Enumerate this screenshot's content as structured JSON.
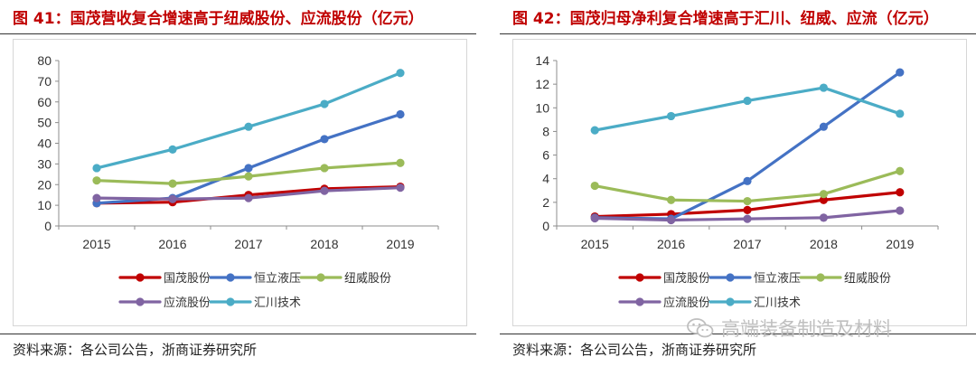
{
  "left": {
    "figure_title": "图 41：国茂营收复合增速高于纽威股份、应流股份（亿元）",
    "source": "资料来源：各公司公告，浙商证券研究所"
  },
  "right": {
    "figure_title": "图 42：国茂归母净利复合增速高于汇川、纽威、应流（亿元）",
    "source": "资料来源：各公司公告，浙商证券研究所"
  },
  "watermark": {
    "text": "高端装备制造及材料",
    "icon": "wechat-icon"
  },
  "chart_data": [
    {
      "type": "line",
      "title": "图 41：国茂营收复合增速高于纽威股份、应流股份（亿元）",
      "xlabel": "",
      "ylabel": "",
      "categories": [
        "2015",
        "2016",
        "2017",
        "2018",
        "2019"
      ],
      "ylim": [
        0,
        80
      ],
      "yticks": [
        0,
        10,
        20,
        30,
        40,
        50,
        60,
        70,
        80
      ],
      "grid": false,
      "legend": "bottom",
      "series": [
        {
          "name": "国茂股份",
          "color": "#c00000",
          "values": [
            11,
            11.5,
            15,
            18,
            19
          ]
        },
        {
          "name": "恒立液压",
          "color": "#4472c4",
          "values": [
            11,
            13.5,
            28,
            42,
            54
          ]
        },
        {
          "name": "纽威股份",
          "color": "#9bbb59",
          "values": [
            22,
            20.5,
            24,
            28,
            30.5
          ]
        },
        {
          "name": "应流股份",
          "color": "#8064a2",
          "values": [
            13.5,
            13,
            13.5,
            17,
            18.5
          ]
        },
        {
          "name": "汇川技术",
          "color": "#4bacc6",
          "values": [
            28,
            37,
            48,
            59,
            74
          ]
        }
      ]
    },
    {
      "type": "line",
      "title": "图 42：国茂归母净利复合增速高于汇川、纽威、应流（亿元）",
      "xlabel": "",
      "ylabel": "",
      "categories": [
        "2015",
        "2016",
        "2017",
        "2018",
        "2019"
      ],
      "ylim": [
        0,
        14
      ],
      "yticks": [
        0,
        2,
        4,
        6,
        8,
        10,
        12,
        14
      ],
      "grid": false,
      "legend": "bottom",
      "series": [
        {
          "name": "国茂股份",
          "color": "#c00000",
          "values": [
            0.8,
            1.0,
            1.35,
            2.2,
            2.85
          ]
        },
        {
          "name": "恒立液压",
          "color": "#4472c4",
          "values": [
            0.7,
            0.6,
            3.8,
            8.4,
            13.0
          ]
        },
        {
          "name": "纽威股份",
          "color": "#9bbb59",
          "values": [
            3.4,
            2.2,
            2.1,
            2.7,
            4.65
          ]
        },
        {
          "name": "应流股份",
          "color": "#8064a2",
          "values": [
            0.65,
            0.5,
            0.6,
            0.7,
            1.3
          ]
        },
        {
          "name": "汇川技术",
          "color": "#4bacc6",
          "values": [
            8.1,
            9.3,
            10.6,
            11.7,
            9.5
          ]
        }
      ]
    }
  ]
}
